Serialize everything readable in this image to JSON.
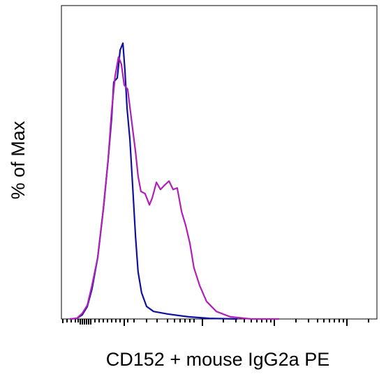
{
  "chart_data": {
    "type": "line",
    "y_label": "% of Max",
    "x_label": "CD152 + mouse IgG2a PE",
    "xlim": [
      0,
      100
    ],
    "ylim": [
      0,
      100
    ],
    "series": [
      {
        "color": "#1010a0",
        "x": [
          2.7,
          4.9,
          6.6,
          8.2,
          9.7,
          11.5,
          13.3,
          14.8,
          15.9,
          16.6,
          17.7,
          18.6,
          19.5,
          20.1,
          20.8,
          21.7,
          22.6,
          23.5,
          24.3,
          25.4,
          27,
          29.2,
          33.6,
          40.3,
          46.9,
          55.8
        ],
        "values": [
          0,
          0.2,
          1.3,
          4,
          9.6,
          19.6,
          35.1,
          50.7,
          64,
          75.6,
          76.9,
          85.8,
          88,
          79.6,
          67.3,
          57.3,
          41.8,
          26.2,
          15.1,
          8.4,
          4,
          2.4,
          1.6,
          0.7,
          0.2,
          0
        ]
      },
      {
        "color": "#b020b8",
        "x": [
          2.7,
          4.9,
          6.6,
          8.2,
          9.7,
          11.5,
          13.3,
          14.8,
          15.9,
          17,
          18.1,
          19,
          19.9,
          21,
          22.1,
          23.5,
          24.3,
          25.2,
          26.5,
          27.9,
          28.8,
          30.1,
          31.4,
          32.7,
          34.1,
          35.4,
          36.7,
          38.1,
          39.4,
          40.7,
          42,
          43.8,
          46,
          49.1,
          53.5,
          60.2,
          69
        ],
        "values": [
          0,
          0.2,
          1.8,
          4.4,
          10.7,
          19.6,
          35.1,
          50.7,
          66.2,
          77.3,
          83.6,
          81.3,
          74.7,
          73.3,
          64.4,
          53.3,
          45.6,
          40.7,
          40,
          36.4,
          38.7,
          43.6,
          41.3,
          42.7,
          44,
          41.3,
          41.8,
          34.2,
          29.8,
          24.2,
          16.4,
          10.7,
          5.6,
          2.4,
          0.7,
          0,
          0
        ]
      }
    ]
  }
}
